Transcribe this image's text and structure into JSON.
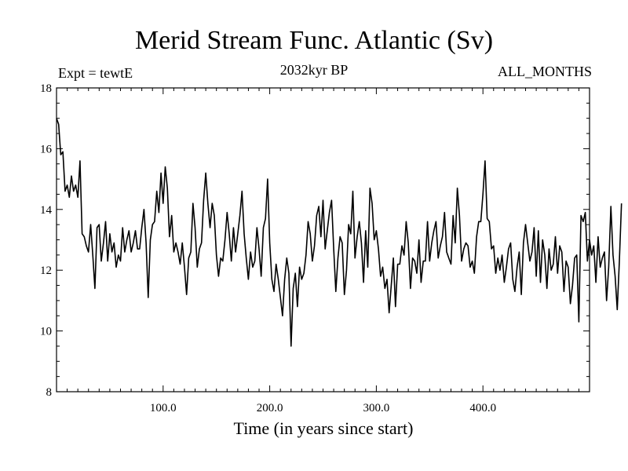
{
  "chart_data": {
    "type": "line",
    "title": "Merid Stream Func. Atlantic (Sv)",
    "subtitle_left": "Expt = tewtE",
    "subtitle_center": "2032kyr BP",
    "subtitle_right": "ALL_MONTHS",
    "xlabel": "Time (in years since start)",
    "ylabel": "",
    "xlim": [
      0,
      500
    ],
    "ylim": [
      8,
      18
    ],
    "xticks_major": [
      100,
      200,
      300,
      400
    ],
    "xtick_labels": [
      "100.0",
      "200.0",
      "300.0",
      "400.0"
    ],
    "yticks_major": [
      8,
      10,
      12,
      14,
      16,
      18
    ],
    "ytick_labels": [
      "8",
      "10",
      "12",
      "14",
      "16",
      "18"
    ],
    "grid": false,
    "series": [
      {
        "name": "Meridional stream function",
        "color": "#000000",
        "x_start": 0,
        "x_step": 2,
        "values": [
          17.0,
          16.8,
          15.8,
          15.9,
          14.6,
          14.8,
          14.4,
          15.1,
          14.6,
          14.8,
          14.4,
          15.6,
          13.2,
          13.1,
          12.8,
          12.6,
          13.5,
          12.5,
          11.4,
          13.4,
          13.5,
          12.3,
          12.9,
          13.6,
          12.3,
          13.2,
          12.6,
          12.9,
          12.1,
          12.5,
          12.3,
          13.4,
          12.6,
          13.0,
          13.3,
          12.6,
          12.9,
          13.3,
          12.7,
          12.7,
          13.4,
          14.0,
          12.9,
          11.1,
          13.0,
          13.5,
          13.6,
          14.6,
          13.9,
          15.2,
          14.2,
          15.4,
          14.7,
          13.1,
          13.8,
          12.6,
          12.9,
          12.6,
          12.2,
          12.9,
          12.1,
          11.2,
          12.4,
          12.6,
          14.2,
          13.4,
          12.1,
          12.7,
          12.9,
          14.3,
          15.2,
          14.2,
          13.4,
          14.2,
          13.8,
          12.5,
          11.8,
          12.4,
          12.3,
          13.0,
          13.9,
          13.2,
          12.3,
          13.4,
          12.6,
          13.2,
          13.8,
          14.6,
          13.2,
          12.4,
          11.7,
          12.6,
          12.1,
          12.3,
          13.4,
          12.7,
          11.8,
          13.4,
          13.7,
          15.0,
          12.9,
          11.7,
          11.3,
          12.2,
          11.7,
          11.1,
          10.5,
          11.7,
          12.4,
          11.9,
          9.5,
          11.4,
          11.9,
          10.8,
          12.1,
          11.7,
          11.9,
          12.5,
          13.6,
          13.2,
          12.3,
          12.8,
          13.8,
          14.1,
          13.1,
          14.3,
          12.7,
          13.3,
          13.9,
          14.3,
          12.7,
          11.3,
          12.4,
          13.1,
          12.9,
          11.2,
          12.0,
          13.5,
          13.2,
          14.6,
          12.4,
          13.1,
          13.6,
          12.9,
          11.6,
          13.3,
          12.1,
          14.7,
          14.2,
          13.0,
          13.3,
          12.7,
          11.8,
          12.1,
          11.4,
          11.7,
          10.6,
          11.5,
          12.4,
          10.8,
          12.2,
          12.2,
          12.8,
          12.5,
          13.6,
          12.9,
          11.4,
          12.4,
          12.3,
          11.9,
          13.0,
          11.6,
          12.3,
          12.3,
          13.6,
          12.3,
          12.9,
          13.3,
          13.6,
          12.4,
          12.8,
          13.1,
          13.9,
          12.6,
          12.4,
          12.2,
          13.8,
          12.9,
          14.7,
          13.8,
          12.3,
          12.7,
          12.9,
          12.8,
          12.1,
          12.3,
          11.9,
          13.1,
          13.6,
          13.6,
          14.5,
          15.6,
          13.7,
          13.6,
          12.7,
          12.8,
          11.9,
          12.4,
          12.0,
          12.5,
          11.6,
          12.1,
          12.7,
          12.9,
          11.7,
          11.3,
          12.1,
          12.6,
          11.2,
          12.9,
          13.5,
          12.9,
          12.3,
          12.6,
          13.4,
          11.8,
          13.3,
          11.6,
          13.0,
          12.5,
          11.4,
          12.7,
          12.0,
          12.2,
          13.1,
          11.9,
          12.8,
          12.6,
          11.3,
          12.3,
          12.1,
          10.9,
          11.5,
          12.4,
          12.5,
          10.3,
          13.8,
          13.6,
          13.9,
          12.3,
          13.0,
          12.5,
          12.8,
          11.6,
          13.1,
          12.1,
          12.4,
          12.6,
          11.0,
          12.1,
          14.1,
          12.5,
          11.8,
          10.7,
          12.3,
          14.2
        ]
      }
    ]
  }
}
